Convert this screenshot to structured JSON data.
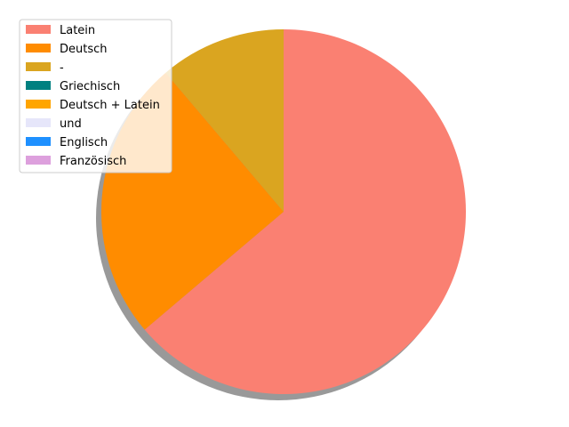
{
  "chart_data": {
    "type": "pie",
    "title": "",
    "start_angle_deg": 90,
    "direction": "clockwise",
    "shadow": true,
    "legend_placement": "top-left",
    "series": [
      {
        "name": "Latein",
        "value": 63.8,
        "color": "#FA8072"
      },
      {
        "name": "Deutsch",
        "value": 25.0,
        "color": "#FF8C00"
      },
      {
        "name": "-",
        "value": 11.2,
        "color": "#DAA520"
      },
      {
        "name": "Griechisch",
        "value": 0,
        "color": "#008080"
      },
      {
        "name": "Deutsch + Latein",
        "value": 0,
        "color": "#FFA500"
      },
      {
        "name": "und",
        "value": 0,
        "color": "#E6E6FA"
      },
      {
        "name": "Englisch",
        "value": 0,
        "color": "#1E90FF"
      },
      {
        "name": "Französisch",
        "value": 0,
        "color": "#DDA0DD"
      }
    ]
  }
}
